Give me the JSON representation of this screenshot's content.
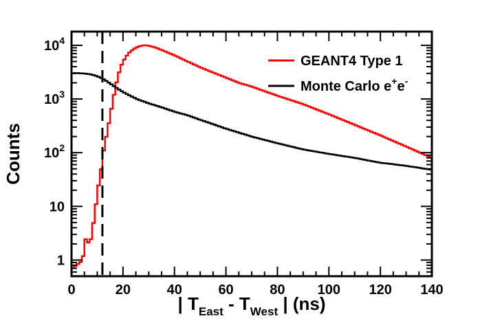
{
  "chart_data": {
    "type": "line",
    "ylabel": "Counts",
    "xlabel": {
      "bar_left": "| ",
      "t1": "T",
      "t1_sub": "East",
      "minus": " - ",
      "t2": "T",
      "t2_sub": "West",
      "bar_right": " | (ns)"
    },
    "xlim": [
      0,
      140
    ],
    "ylim": [
      0.5,
      18000
    ],
    "y_scale": "log",
    "x_ticks": [
      0,
      20,
      40,
      60,
      80,
      100,
      120,
      140
    ],
    "x_tick_labels": [
      "0",
      "20",
      "40",
      "60",
      "80",
      "100",
      "120",
      "140"
    ],
    "y_ticks": [
      {
        "value": 1,
        "base": "1"
      },
      {
        "value": 10,
        "base": "10"
      },
      {
        "value": 100,
        "base": "10",
        "exp": "2"
      },
      {
        "value": 1000,
        "base": "10",
        "exp": "3"
      },
      {
        "value": 10000,
        "base": "10",
        "exp": "4"
      }
    ],
    "cut_line_x": 12,
    "legend": [
      {
        "label_main": "GEANT4 Type 1",
        "label_sup1": "",
        "label_mid": "",
        "label_sup2": "",
        "color": "#ff0000"
      },
      {
        "label_main": "Monte Carlo e",
        "label_sup1": "+",
        "label_mid": "e",
        "label_sup2": "-",
        "color": "#000000"
      }
    ],
    "series": [
      {
        "color": "#ff0000",
        "x": [
          0,
          1,
          2,
          3,
          4,
          5,
          6,
          7,
          8,
          9,
          10,
          11,
          12,
          13,
          14,
          15,
          16,
          17,
          18,
          19,
          20,
          22,
          24,
          26,
          28,
          29,
          30,
          32,
          35,
          40,
          45,
          50,
          55,
          60,
          65,
          70,
          80,
          90,
          100,
          110,
          120,
          130,
          140
        ],
        "y": [
          0.5,
          1,
          0.6,
          1.2,
          0.7,
          2,
          3,
          1.5,
          4,
          6,
          20,
          30,
          80,
          150,
          260,
          480,
          900,
          1600,
          2600,
          3800,
          5000,
          7000,
          8500,
          9500,
          10000,
          10000,
          9800,
          9300,
          8200,
          6500,
          5000,
          3900,
          3100,
          2500,
          2000,
          1700,
          1150,
          800,
          520,
          330,
          210,
          130,
          80
        ]
      },
      {
        "color": "#000000",
        "x": [
          0,
          2,
          4,
          6,
          8,
          10,
          12,
          14,
          16,
          18,
          20,
          22,
          24,
          26,
          28,
          30,
          35,
          40,
          45,
          50,
          55,
          60,
          70,
          80,
          90,
          100,
          110,
          120,
          130,
          140
        ],
        "y": [
          3000,
          3050,
          3000,
          2950,
          2850,
          2650,
          2400,
          2100,
          1800,
          1550,
          1350,
          1200,
          1080,
          970,
          900,
          830,
          700,
          580,
          500,
          410,
          340,
          280,
          200,
          150,
          115,
          95,
          80,
          65,
          57,
          48
        ]
      }
    ]
  }
}
